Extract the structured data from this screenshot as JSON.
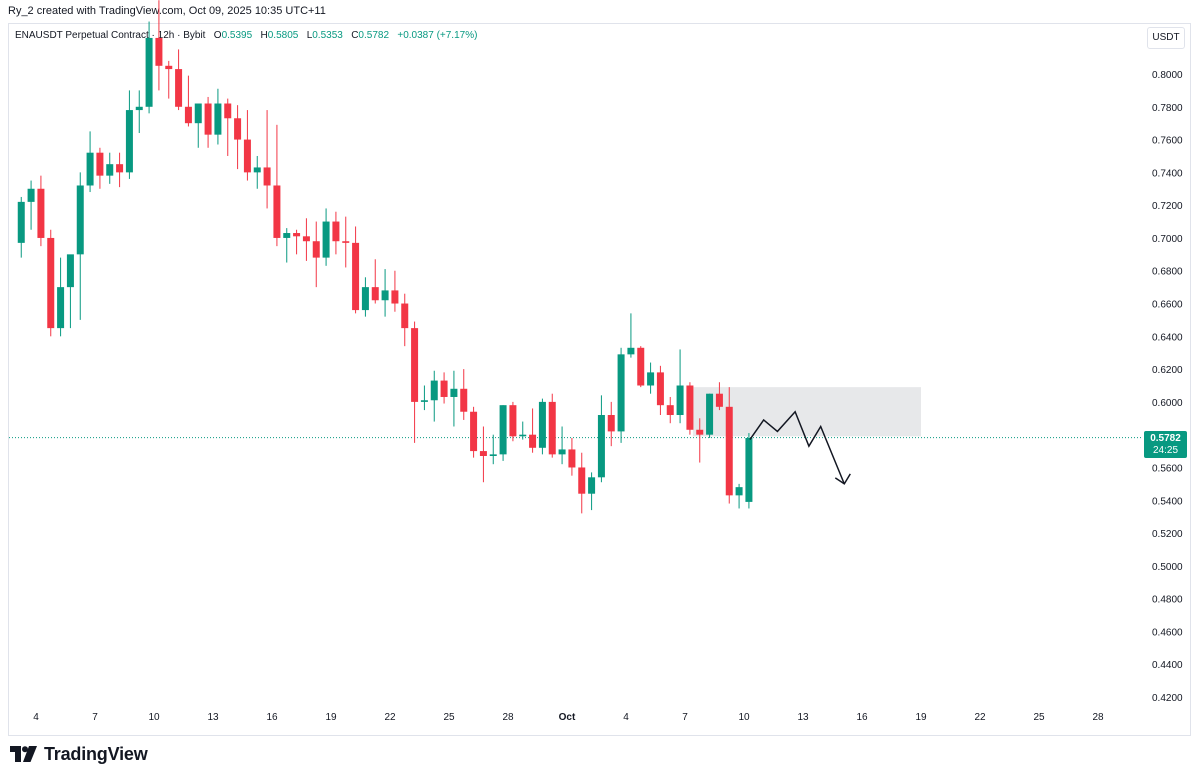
{
  "header": {
    "credit": "Ry_2 created with TradingView.com, Oct 09, 2025 10:35 UTC+11"
  },
  "legend": {
    "symbol": "ENAUSDT Perpetual Contract · 12h · Bybit",
    "o_label": "O",
    "o_value": "0.5395",
    "h_label": "H",
    "h_value": "0.5805",
    "l_label": "L",
    "l_value": "0.5353",
    "c_label": "C",
    "c_value": "0.5782",
    "change": "+0.0387 (+7.17%)"
  },
  "currency_button": "USDT",
  "price_tag": {
    "price": "0.5782",
    "countdown": "24:25"
  },
  "brand": {
    "name": "TradingView"
  },
  "colors": {
    "up": "#089981",
    "down": "#f23645",
    "zone": "#e3e4e6",
    "grid": "#e0e3eb"
  },
  "chart_data": {
    "type": "candlestick",
    "interval": "12h",
    "grid": false,
    "ylim": [
      0.41,
      0.85
    ],
    "yticks": [
      "0.8000",
      "0.7800",
      "0.7600",
      "0.7400",
      "0.7200",
      "0.7000",
      "0.6800",
      "0.6600",
      "0.6400",
      "0.6200",
      "0.6000",
      "0.5800",
      "0.5600",
      "0.5400",
      "0.5200",
      "0.5000",
      "0.4800",
      "0.4600",
      "0.4400",
      "0.4200"
    ],
    "xticks": [
      {
        "label": "4",
        "day": 4
      },
      {
        "label": "7",
        "day": 7
      },
      {
        "label": "10",
        "day": 10
      },
      {
        "label": "13",
        "day": 13
      },
      {
        "label": "16",
        "day": 16
      },
      {
        "label": "19",
        "day": 19
      },
      {
        "label": "22",
        "day": 22
      },
      {
        "label": "25",
        "day": 25
      },
      {
        "label": "28",
        "day": 28
      },
      {
        "label": "Oct",
        "day": 31
      },
      {
        "label": "4",
        "day": 34
      },
      {
        "label": "7",
        "day": 37
      },
      {
        "label": "10",
        "day": 40
      },
      {
        "label": "13",
        "day": 43
      },
      {
        "label": "16",
        "day": 46
      },
      {
        "label": "19",
        "day": 49
      },
      {
        "label": "22",
        "day": 52
      },
      {
        "label": "25",
        "day": 55
      },
      {
        "label": "28",
        "day": 58
      }
    ],
    "candles": [
      [
        0.697,
        0.725,
        0.688,
        0.722
      ],
      [
        0.722,
        0.735,
        0.705,
        0.73
      ],
      [
        0.73,
        0.738,
        0.695,
        0.7
      ],
      [
        0.7,
        0.705,
        0.64,
        0.645
      ],
      [
        0.645,
        0.688,
        0.64,
        0.67
      ],
      [
        0.67,
        0.688,
        0.645,
        0.69
      ],
      [
        0.69,
        0.74,
        0.65,
        0.732
      ],
      [
        0.732,
        0.765,
        0.728,
        0.752
      ],
      [
        0.752,
        0.755,
        0.73,
        0.738
      ],
      [
        0.738,
        0.752,
        0.733,
        0.745
      ],
      [
        0.745,
        0.752,
        0.731,
        0.74
      ],
      [
        0.74,
        0.79,
        0.736,
        0.778
      ],
      [
        0.778,
        0.79,
        0.764,
        0.78
      ],
      [
        0.78,
        0.832,
        0.776,
        0.822
      ],
      [
        0.822,
        0.845,
        0.79,
        0.805
      ],
      [
        0.805,
        0.808,
        0.785,
        0.803
      ],
      [
        0.803,
        0.815,
        0.778,
        0.78
      ],
      [
        0.78,
        0.799,
        0.768,
        0.77
      ],
      [
        0.77,
        0.782,
        0.755,
        0.782
      ],
      [
        0.782,
        0.786,
        0.755,
        0.763
      ],
      [
        0.763,
        0.791,
        0.757,
        0.782
      ],
      [
        0.782,
        0.785,
        0.75,
        0.773
      ],
      [
        0.773,
        0.781,
        0.742,
        0.76
      ],
      [
        0.76,
        0.778,
        0.735,
        0.74
      ],
      [
        0.74,
        0.75,
        0.73,
        0.743
      ],
      [
        0.743,
        0.778,
        0.718,
        0.732
      ],
      [
        0.732,
        0.769,
        0.695,
        0.7
      ],
      [
        0.7,
        0.706,
        0.685,
        0.703
      ],
      [
        0.703,
        0.705,
        0.69,
        0.701
      ],
      [
        0.701,
        0.712,
        0.686,
        0.698
      ],
      [
        0.698,
        0.71,
        0.67,
        0.688
      ],
      [
        0.688,
        0.718,
        0.683,
        0.71
      ],
      [
        0.71,
        0.716,
        0.69,
        0.698
      ],
      [
        0.698,
        0.713,
        0.682,
        0.697
      ],
      [
        0.697,
        0.707,
        0.654,
        0.656
      ],
      [
        0.656,
        0.676,
        0.652,
        0.67
      ],
      [
        0.67,
        0.687,
        0.66,
        0.662
      ],
      [
        0.662,
        0.681,
        0.652,
        0.668
      ],
      [
        0.668,
        0.68,
        0.655,
        0.66
      ],
      [
        0.66,
        0.666,
        0.634,
        0.645
      ],
      [
        0.645,
        0.649,
        0.575,
        0.6
      ],
      [
        0.6,
        0.61,
        0.595,
        0.601
      ],
      [
        0.601,
        0.619,
        0.588,
        0.613
      ],
      [
        0.613,
        0.618,
        0.599,
        0.603
      ],
      [
        0.603,
        0.619,
        0.585,
        0.608
      ],
      [
        0.608,
        0.62,
        0.589,
        0.594
      ],
      [
        0.594,
        0.597,
        0.566,
        0.57
      ],
      [
        0.57,
        0.585,
        0.551,
        0.567
      ],
      [
        0.567,
        0.58,
        0.562,
        0.568
      ],
      [
        0.568,
        0.598,
        0.564,
        0.598
      ],
      [
        0.598,
        0.6,
        0.576,
        0.579
      ],
      [
        0.579,
        0.588,
        0.577,
        0.58
      ],
      [
        0.58,
        0.596,
        0.569,
        0.572
      ],
      [
        0.572,
        0.602,
        0.568,
        0.6
      ],
      [
        0.6,
        0.605,
        0.566,
        0.568
      ],
      [
        0.568,
        0.585,
        0.562,
        0.571
      ],
      [
        0.571,
        0.578,
        0.555,
        0.56
      ],
      [
        0.56,
        0.569,
        0.532,
        0.544
      ],
      [
        0.544,
        0.557,
        0.534,
        0.554
      ],
      [
        0.554,
        0.604,
        0.551,
        0.592
      ],
      [
        0.592,
        0.6,
        0.573,
        0.582
      ],
      [
        0.582,
        0.633,
        0.575,
        0.629
      ],
      [
        0.629,
        0.654,
        0.627,
        0.633
      ],
      [
        0.633,
        0.634,
        0.609,
        0.61
      ],
      [
        0.61,
        0.624,
        0.605,
        0.618
      ],
      [
        0.618,
        0.622,
        0.592,
        0.598
      ],
      [
        0.598,
        0.603,
        0.587,
        0.592
      ],
      [
        0.592,
        0.632,
        0.587,
        0.61
      ],
      [
        0.61,
        0.612,
        0.58,
        0.583
      ],
      [
        0.583,
        0.59,
        0.563,
        0.58
      ],
      [
        0.58,
        0.605,
        0.578,
        0.605
      ],
      [
        0.605,
        0.612,
        0.595,
        0.597
      ],
      [
        0.597,
        0.609,
        0.538,
        0.543
      ],
      [
        0.543,
        0.55,
        0.535,
        0.548
      ],
      [
        0.539,
        0.581,
        0.535,
        0.578
      ]
    ],
    "current_price": 0.5782,
    "resistance_zone": {
      "from": 0.579,
      "to": 0.609,
      "start_day": 37.4,
      "end_day": 49.0
    },
    "projection": [
      [
        40.3,
        0.577
      ],
      [
        41.0,
        0.589
      ],
      [
        41.7,
        0.582
      ],
      [
        42.6,
        0.594
      ],
      [
        43.3,
        0.573
      ],
      [
        43.9,
        0.585
      ],
      [
        45.1,
        0.55
      ]
    ]
  }
}
